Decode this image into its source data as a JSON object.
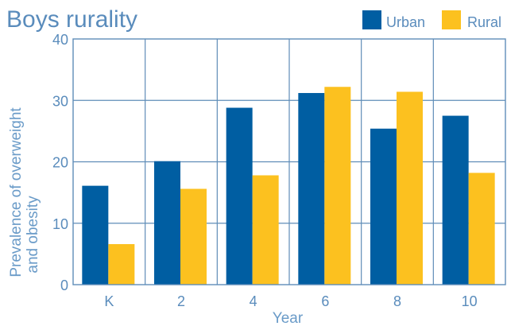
{
  "chart_data": {
    "type": "bar",
    "title": "Boys rurality",
    "xlabel": "Year",
    "ylabel_lines": [
      "Prevalence of overweight",
      "and obesity"
    ],
    "categories": [
      "K",
      "2",
      "4",
      "6",
      "8",
      "10"
    ],
    "series": [
      {
        "name": "Urban",
        "color": "#005ea2",
        "values": [
          16.1,
          20.1,
          28.8,
          31.2,
          25.4,
          27.5
        ]
      },
      {
        "name": "Rural",
        "color": "#fcc11f",
        "values": [
          6.6,
          15.6,
          17.8,
          32.2,
          31.4,
          18.2
        ]
      }
    ],
    "ylim": [
      0,
      40
    ],
    "yticks": [
      "0",
      "10",
      "20",
      "30",
      "40"
    ],
    "grid": true,
    "legend_position": "top-right"
  }
}
